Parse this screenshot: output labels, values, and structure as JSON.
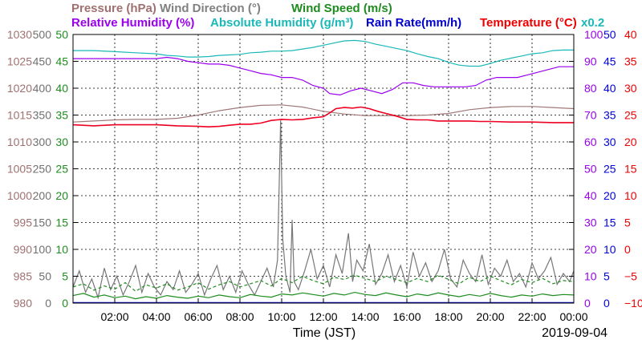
{
  "chart_data": {
    "type": "line",
    "title_rows": [
      [
        {
          "key": "pressure",
          "text": "Pressure (hPa)"
        },
        {
          "key": "wind_dir",
          "text": "Wind Direction (°)"
        },
        {
          "key": "wind_speed",
          "text": "Wind Speed (m/s)"
        }
      ],
      [
        {
          "key": "rh",
          "text": "Relative Humidity (%)"
        },
        {
          "key": "ah",
          "text": "Absolute Humidity (g/m³)"
        },
        {
          "key": "rain",
          "text": "Rain Rate(mm/h)"
        },
        {
          "key": "temp",
          "text": "Temperature (°C)"
        },
        {
          "key": "rain_scale",
          "text": "x0.2"
        }
      ]
    ],
    "xlabel": "Time (JST)",
    "date_label": "2019-09-04",
    "x_range": [
      "00:00",
      "24:00"
    ],
    "x_ticks": [
      "02:00",
      "04:00",
      "06:00",
      "08:00",
      "10:00",
      "12:00",
      "14:00",
      "16:00",
      "18:00",
      "20:00",
      "22:00",
      "00:00"
    ],
    "grid": true,
    "axes": {
      "pressure": {
        "side": "left",
        "min": 980,
        "max": 1030,
        "ticks": [
          "980",
          "985",
          "990",
          "995",
          "1000",
          "1005",
          "1010",
          "1015",
          "1020",
          "1025",
          "1030"
        ],
        "color": "#a07070"
      },
      "wind_dir": {
        "side": "left",
        "min": 0,
        "max": 500,
        "ticks": [
          "0",
          "50",
          "100",
          "150",
          "200",
          "250",
          "300",
          "350",
          "400",
          "450",
          "500"
        ],
        "color": "#707070"
      },
      "wind_speed": {
        "side": "left",
        "min": 0,
        "max": 50,
        "ticks": [
          "0",
          "5",
          "10",
          "15",
          "20",
          "25",
          "30",
          "35",
          "40",
          "45",
          "50"
        ],
        "color": "#1e8c1e"
      },
      "rh": {
        "side": "right",
        "min": 0,
        "max": 100,
        "ticks": [
          "0",
          "10",
          "20",
          "30",
          "40",
          "50",
          "60",
          "70",
          "80",
          "90",
          "100"
        ],
        "color": "#9900ee"
      },
      "ah_rain": {
        "side": "right",
        "min": 0,
        "max": 50,
        "ticks": [
          "0",
          "5",
          "10",
          "15",
          "20",
          "25",
          "30",
          "35",
          "40",
          "45",
          "50"
        ],
        "color": "#0000dd"
      },
      "temp": {
        "side": "right",
        "min": -10,
        "max": 40,
        "ticks": [
          "−10",
          "−5",
          "0",
          "5",
          "10",
          "15",
          "20",
          "25",
          "30",
          "35",
          "40"
        ],
        "color": "#ee0000"
      }
    },
    "series": [
      {
        "name": "Pressure (hPa)",
        "axis": "pressure",
        "color": "#a07878",
        "x": [
          0,
          1,
          2,
          3,
          4,
          5,
          6,
          7,
          8,
          9,
          10,
          11,
          12,
          13,
          14,
          15,
          16,
          17,
          18,
          19,
          20,
          21,
          22,
          23,
          24
        ],
        "y": [
          1013.7,
          1013.9,
          1014.1,
          1014.2,
          1014.2,
          1014.4,
          1015.0,
          1015.8,
          1016.4,
          1016.8,
          1016.9,
          1016.5,
          1015.7,
          1015.2,
          1014.9,
          1014.9,
          1014.9,
          1015.0,
          1015.3,
          1016.0,
          1016.4,
          1016.6,
          1016.6,
          1016.4,
          1016.2
        ]
      },
      {
        "name": "Wind Direction (°)",
        "axis": "wind_dir",
        "color": "#777777",
        "x": [
          0,
          0.3,
          0.6,
          0.9,
          1.2,
          1.5,
          1.8,
          2.1,
          2.4,
          2.7,
          3.0,
          3.3,
          3.6,
          3.9,
          4.2,
          4.5,
          4.8,
          5.1,
          5.4,
          5.7,
          6.0,
          6.3,
          6.6,
          6.9,
          7.2,
          7.5,
          7.8,
          8.1,
          8.4,
          8.7,
          9.0,
          9.3,
          9.6,
          9.8,
          9.95,
          10.05,
          10.2,
          10.4,
          10.5,
          10.6,
          10.8,
          11.1,
          11.4,
          11.7,
          12.0,
          12.3,
          12.6,
          12.9,
          13.2,
          13.4,
          13.6,
          13.9,
          14.2,
          14.5,
          14.8,
          15.1,
          15.4,
          15.7,
          16.0,
          16.3,
          16.6,
          16.9,
          17.2,
          17.5,
          17.8,
          18.1,
          18.4,
          18.7,
          19.0,
          19.3,
          19.6,
          19.9,
          20.2,
          20.5,
          20.8,
          21.1,
          21.4,
          21.7,
          22.0,
          22.3,
          22.6,
          22.9,
          23.2,
          23.5,
          23.8,
          24
        ],
        "y": [
          30,
          60,
          20,
          45,
          10,
          65,
          25,
          50,
          15,
          40,
          70,
          20,
          55,
          30,
          15,
          40,
          25,
          60,
          20,
          35,
          55,
          15,
          45,
          70,
          25,
          50,
          20,
          60,
          35,
          15,
          40,
          65,
          30,
          80,
          340,
          120,
          50,
          20,
          155,
          40,
          25,
          60,
          100,
          45,
          70,
          30,
          90,
          55,
          130,
          40,
          80,
          60,
          110,
          35,
          55,
          90,
          40,
          70,
          30,
          95,
          50,
          75,
          40,
          60,
          100,
          45,
          30,
          80,
          55,
          40,
          90,
          35,
          65,
          50,
          80,
          40,
          55,
          30,
          75,
          45,
          60,
          85,
          35,
          55,
          40,
          60
        ]
      },
      {
        "name": "Wind Speed (m/s)",
        "axis": "wind_speed",
        "color": "#1e8c1e",
        "x": [
          0,
          0.5,
          1,
          1.5,
          2,
          2.5,
          3,
          3.5,
          4,
          4.5,
          5,
          5.5,
          6,
          6.5,
          7,
          7.5,
          8,
          8.5,
          9,
          9.5,
          10,
          10.5,
          11,
          11.5,
          12,
          12.5,
          13,
          13.5,
          14,
          14.5,
          15,
          15.5,
          16,
          16.5,
          17,
          17.5,
          18,
          18.5,
          19,
          19.5,
          20,
          20.5,
          21,
          21.5,
          22,
          22.5,
          23,
          23.5,
          24
        ],
        "y": [
          1.4,
          1.8,
          1.1,
          1.5,
          1.0,
          1.3,
          0.8,
          1.2,
          0.9,
          1.4,
          1.1,
          0.9,
          1.3,
          1.0,
          1.5,
          1.2,
          1.0,
          1.6,
          1.3,
          1.1,
          1.7,
          1.5,
          1.9,
          1.6,
          1.3,
          1.8,
          1.5,
          2.0,
          1.6,
          1.4,
          1.9,
          1.5,
          1.2,
          1.7,
          1.4,
          1.9,
          1.5,
          1.2,
          1.6,
          1.3,
          1.8,
          1.4,
          1.1,
          1.5,
          1.3,
          1.7,
          1.4,
          1.6,
          1.5
        ]
      },
      {
        "name": "Wind Speed gust (m/s)",
        "axis": "wind_speed",
        "color": "#1e8c1e",
        "dashed": true,
        "x": [
          0,
          0.5,
          1,
          1.5,
          2,
          2.5,
          3,
          3.5,
          4,
          4.5,
          5,
          5.5,
          6,
          6.5,
          7,
          7.5,
          8,
          8.5,
          9,
          9.5,
          10,
          10.5,
          11,
          11.5,
          12,
          12.5,
          13,
          13.5,
          14,
          14.5,
          15,
          15.5,
          16,
          16.5,
          17,
          17.5,
          18,
          18.5,
          19,
          19.5,
          20,
          20.5,
          21,
          21.5,
          22,
          22.5,
          23,
          23.5,
          24
        ],
        "y": [
          3.0,
          3.6,
          2.4,
          3.2,
          2.6,
          3.8,
          2.2,
          3.4,
          2.8,
          3.6,
          2.4,
          3.0,
          3.8,
          2.6,
          3.4,
          4.0,
          3.0,
          3.6,
          4.2,
          3.2,
          4.6,
          3.8,
          5.0,
          4.2,
          3.6,
          4.8,
          4.4,
          5.2,
          4.6,
          4.0,
          5.0,
          4.4,
          3.8,
          4.6,
          4.0,
          5.2,
          4.4,
          3.6,
          4.8,
          4.0,
          5.0,
          4.2,
          3.4,
          4.4,
          3.8,
          4.6,
          3.6,
          4.2,
          4.0
        ]
      },
      {
        "name": "Relative Humidity (%)",
        "axis": "rh",
        "color": "#9a00ee",
        "x": [
          0,
          1,
          2,
          3,
          4,
          4.5,
          5,
          5.5,
          6,
          6.5,
          7,
          7.5,
          8,
          8.5,
          9,
          9.5,
          10,
          10.5,
          11,
          11.5,
          12,
          12.3,
          12.8,
          13.3,
          13.8,
          14.3,
          14.8,
          15.3,
          15.8,
          16.3,
          16.8,
          17.3,
          17.8,
          18.3,
          18.8,
          19.3,
          19.8,
          20.3,
          20.8,
          21.3,
          21.8,
          22.3,
          22.8,
          23.3,
          23.7,
          24
        ],
        "y": [
          91,
          91,
          91,
          91,
          91,
          91.5,
          91,
          90,
          89.5,
          89,
          89,
          88.5,
          87.5,
          86.5,
          85.5,
          85,
          84,
          84,
          83,
          81,
          80,
          78,
          77.5,
          79,
          80,
          79,
          78,
          79.5,
          82,
          82,
          81,
          80.5,
          80.5,
          80.5,
          80.5,
          81,
          83,
          84,
          84,
          84,
          85,
          86,
          87,
          88,
          88,
          88
        ]
      },
      {
        "name": "Absolute Humidity (g/m³)",
        "axis": "ah_rain",
        "color": "#1ab8b8",
        "x": [
          0,
          1,
          2,
          3,
          4,
          4.5,
          5,
          5.5,
          6,
          6.5,
          7,
          7.5,
          8,
          8.5,
          9,
          9.5,
          10,
          10.5,
          11,
          11.5,
          12,
          12.5,
          13,
          13.5,
          14,
          14.5,
          15,
          15.5,
          16,
          16.5,
          17,
          17.5,
          18,
          18.5,
          19,
          19.5,
          20,
          20.5,
          21,
          21.5,
          22,
          22.5,
          23,
          23.5,
          24
        ],
        "y": [
          47.0,
          47.0,
          46.8,
          46.6,
          46.4,
          46.1,
          46.0,
          45.8,
          45.8,
          45.9,
          46.1,
          46.2,
          46.3,
          46.6,
          46.7,
          46.9,
          46.9,
          47.0,
          47.3,
          47.6,
          48.0,
          48.4,
          48.8,
          48.9,
          48.7,
          48.2,
          47.8,
          47.4,
          47.0,
          46.4,
          45.9,
          45.5,
          44.8,
          44.3,
          44.1,
          44.1,
          44.6,
          45.2,
          45.6,
          46.0,
          46.4,
          46.6,
          47.0,
          47.1,
          47.1
        ]
      },
      {
        "name": "Rain Rate(mm/h)",
        "axis": "ah_rain",
        "color": "#0000dd",
        "x": [
          0,
          24
        ],
        "y": [
          0.1,
          0.1
        ]
      },
      {
        "name": "Temperature (°C)",
        "axis": "temp",
        "color": "#ee0022",
        "x": [
          0,
          1,
          2,
          3,
          4,
          5,
          6,
          6.5,
          7,
          7.5,
          8,
          8.5,
          9,
          9.5,
          10,
          10.5,
          11,
          11.5,
          12,
          12.3,
          12.6,
          13,
          13.4,
          13.8,
          14.2,
          14.6,
          15,
          15.5,
          16,
          16.5,
          17,
          17.5,
          18,
          18.5,
          19,
          19.5,
          20,
          21,
          22,
          23,
          24
        ],
        "y": [
          23.2,
          23.0,
          23.2,
          23.2,
          23.2,
          23.0,
          22.9,
          22.8,
          22.9,
          23.1,
          23.3,
          23.3,
          23.5,
          24.0,
          24.2,
          24.1,
          24.2,
          24.5,
          24.7,
          25.4,
          26.2,
          26.4,
          26.3,
          26.5,
          26.2,
          25.7,
          25.3,
          24.8,
          24.2,
          24.1,
          24.1,
          23.9,
          23.9,
          23.9,
          23.9,
          23.8,
          23.8,
          23.7,
          23.7,
          23.6,
          23.6
        ]
      }
    ]
  }
}
